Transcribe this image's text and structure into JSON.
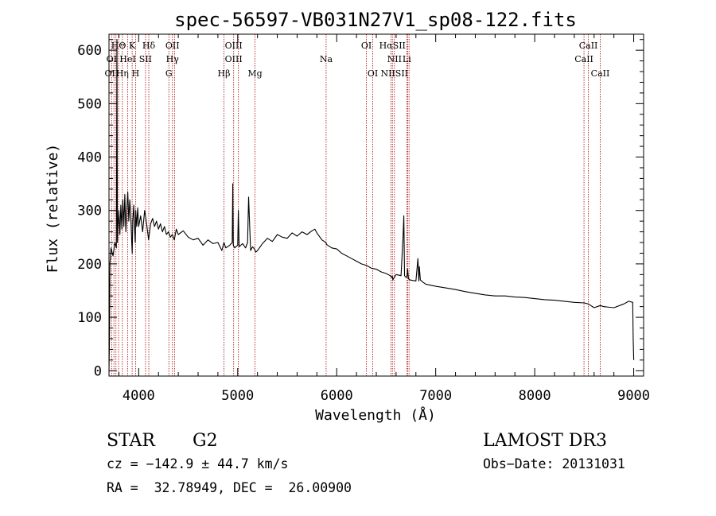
{
  "chart_data": {
    "type": "line",
    "title": "spec-56597-VB031N27V1_sp08-122.fits",
    "xlabel": "Wavelength (Å)",
    "ylabel": "Flux (relative)",
    "xlim": [
      3700,
      9100
    ],
    "ylim": [
      -10,
      630
    ],
    "x_ticks": [
      4000,
      5000,
      6000,
      7000,
      8000,
      9000
    ],
    "y_ticks": [
      0,
      100,
      200,
      300,
      400,
      500,
      600
    ],
    "x_tick_labels": [
      "4000",
      "5000",
      "6000",
      "7000",
      "8000",
      "9000"
    ],
    "y_tick_labels": [
      "0",
      "100",
      "200",
      "300",
      "400",
      "500",
      "600"
    ],
    "grid": false,
    "colors": {
      "spectrum": "#000000",
      "lines": "#b22222",
      "axes": "#000000"
    },
    "series": [
      {
        "name": "spectrum",
        "x": [
          3700,
          3705,
          3710,
          3720,
          3740,
          3760,
          3775,
          3780,
          3785,
          3790,
          3800,
          3810,
          3820,
          3830,
          3840,
          3850,
          3860,
          3870,
          3880,
          3890,
          3900,
          3910,
          3920,
          3930,
          3935,
          3940,
          3950,
          3960,
          3965,
          3970,
          3980,
          3990,
          4000,
          4020,
          4040,
          4060,
          4080,
          4100,
          4120,
          4140,
          4160,
          4180,
          4200,
          4220,
          4240,
          4260,
          4280,
          4300,
          4320,
          4340,
          4360,
          4380,
          4400,
          4450,
          4500,
          4550,
          4600,
          4650,
          4700,
          4750,
          4800,
          4840,
          4861,
          4880,
          4920,
          4945,
          4950,
          4955,
          4970,
          5000,
          5007,
          5015,
          5050,
          5080,
          5100,
          5110,
          5130,
          5150,
          5170,
          5183,
          5200,
          5250,
          5300,
          5350,
          5400,
          5450,
          5500,
          5550,
          5600,
          5650,
          5700,
          5750,
          5780,
          5800,
          5850,
          5890,
          5900,
          5950,
          6000,
          6050,
          6100,
          6150,
          6200,
          6250,
          6300,
          6350,
          6400,
          6450,
          6500,
          6540,
          6555,
          6562,
          6567,
          6575,
          6600,
          6650,
          6670,
          6678,
          6685,
          6700,
          6710,
          6717,
          6725,
          6740,
          6800,
          6820,
          6830,
          6835,
          6845,
          6870,
          6900,
          7000,
          7100,
          7200,
          7300,
          7400,
          7500,
          7600,
          7700,
          7800,
          7900,
          8000,
          8100,
          8200,
          8300,
          8400,
          8500,
          8542,
          8600,
          8662,
          8700,
          8800,
          8900,
          8950,
          8990,
          8995,
          9000
        ],
        "y": [
          0,
          60,
          200,
          230,
          215,
          240,
          230,
          620,
          240,
          270,
          300,
          255,
          310,
          265,
          320,
          270,
          330,
          260,
          300,
          335,
          280,
          320,
          290,
          240,
          220,
          280,
          310,
          260,
          240,
          300,
          270,
          305,
          270,
          290,
          260,
          300,
          275,
          245,
          275,
          285,
          270,
          280,
          265,
          275,
          260,
          270,
          255,
          260,
          250,
          255,
          245,
          265,
          255,
          262,
          250,
          245,
          248,
          235,
          245,
          238,
          240,
          225,
          240,
          230,
          235,
          240,
          350,
          235,
          230,
          235,
          300,
          232,
          238,
          230,
          240,
          325,
          225,
          232,
          228,
          222,
          225,
          238,
          248,
          242,
          255,
          250,
          248,
          258,
          252,
          260,
          255,
          262,
          265,
          258,
          245,
          240,
          236,
          230,
          228,
          220,
          215,
          210,
          205,
          200,
          197,
          192,
          190,
          185,
          182,
          178,
          175,
          177,
          170,
          173,
          180,
          178,
          250,
          290,
          178,
          175,
          176,
          190,
          172,
          170,
          168,
          210,
          168,
          195,
          170,
          166,
          162,
          158,
          155,
          152,
          148,
          145,
          142,
          140,
          140,
          138,
          137,
          135,
          133,
          132,
          130,
          128,
          127,
          125,
          118,
          122,
          120,
          118,
          125,
          130,
          128,
          60,
          20
        ]
      }
    ],
    "line_markers": [
      {
        "label": "HΘ",
        "x": 3797,
        "row": 0
      },
      {
        "label": "K",
        "x": 3934,
        "row": 0
      },
      {
        "label": "Hδ",
        "x": 4102,
        "row": 0
      },
      {
        "label": "OII",
        "x": 4341,
        "row": 0
      },
      {
        "label": "OIII",
        "x": 4959,
        "row": 0
      },
      {
        "label": "OI",
        "x": 6300,
        "row": 0
      },
      {
        "label": "HαSII",
        "x": 6563,
        "row": 0
      },
      {
        "label": "CaII",
        "x": 8542,
        "row": 0
      },
      {
        "label": "OI",
        "x": 3727,
        "row": 1
      },
      {
        "label": "HeI",
        "x": 3889,
        "row": 1
      },
      {
        "label": "SII",
        "x": 4069,
        "row": 1
      },
      {
        "label": "Hγ",
        "x": 4341,
        "row": 1
      },
      {
        "label": "OIII",
        "x": 4959,
        "row": 1
      },
      {
        "label": "Na",
        "x": 5893,
        "row": 1
      },
      {
        "label": "NII",
        "x": 6583,
        "row": 1
      },
      {
        "label": "Li",
        "x": 6708,
        "row": 1
      },
      {
        "label": "CaII",
        "x": 8498,
        "row": 1
      },
      {
        "label": "OII",
        "x": 3727,
        "row": 2
      },
      {
        "label": "Hη",
        "x": 3835,
        "row": 2
      },
      {
        "label": "H",
        "x": 3969,
        "row": 2
      },
      {
        "label": "G",
        "x": 4305,
        "row": 2
      },
      {
        "label": "Hβ",
        "x": 4861,
        "row": 2
      },
      {
        "label": "Mg",
        "x": 5175,
        "row": 2
      },
      {
        "label": "OI",
        "x": 6364,
        "row": 2
      },
      {
        "label": "NIISII",
        "x": 6583,
        "row": 2
      },
      {
        "label": "CaII",
        "x": 8662,
        "row": 2
      }
    ],
    "vertical_lines": [
      3727,
      3750,
      3770,
      3797,
      3835,
      3889,
      3934,
      3969,
      4069,
      4102,
      4305,
      4341,
      4363,
      4861,
      4959,
      5007,
      5175,
      5893,
      6300,
      6364,
      6548,
      6563,
      6583,
      6708,
      6717,
      6731,
      8498,
      8542,
      8662
    ]
  },
  "footer": {
    "object_class": "STAR",
    "subclass": "G2",
    "survey": "LAMOST DR3",
    "redshift": "cz = −142.9 ± 44.7 km/s",
    "obs_date": "Obs−Date: 20131031",
    "coords": "RA =  32.78949, DEC =  26.00900"
  }
}
